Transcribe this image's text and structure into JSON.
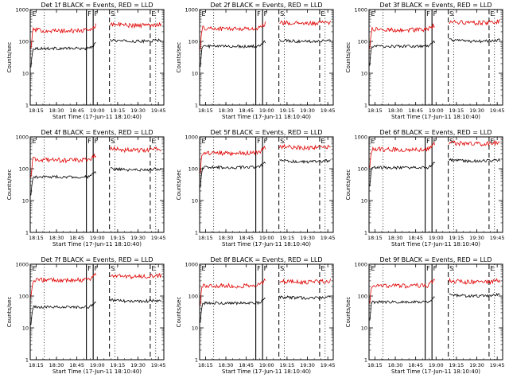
{
  "figure": {
    "layout": "3x3 grid of detector count-rate panels",
    "background_color": "#ffffff",
    "series_colors": {
      "events": "#000000",
      "lld": "#e00000"
    }
  },
  "chart_data": [
    {
      "type": "line",
      "title": "Det 1f BLACK = Events, RED = LLD",
      "xlabel": "Start Time (17-Jun-11 18:10:40)",
      "ylabel": "Counts/sec",
      "yscale": "log",
      "ylim": [
        1,
        1000
      ],
      "yticks": [
        "1",
        "10",
        "100",
        "1000"
      ],
      "xticks": [
        "18:15",
        "18:30",
        "18:45",
        "19:00",
        "19:15",
        "19:30",
        "19:45"
      ],
      "markers": [
        {
          "label": "E",
          "time": "18:10:40",
          "style": "letter"
        },
        {
          "label": "F",
          "time": "18:52",
          "style": "solid"
        },
        {
          "label": "F",
          "time": "18:57",
          "style": "solid"
        },
        {
          "label": "S",
          "time": "19:09",
          "style": "dashed"
        },
        {
          "label": "E",
          "time": "19:39",
          "style": "dashed"
        }
      ],
      "dotted_lines": [
        "18:21",
        "19:13",
        "19:43"
      ],
      "series": [
        {
          "color": "#000000",
          "level": 60,
          "level_mid": 60,
          "level_last": 110
        },
        {
          "color": "#e00000",
          "level": 230,
          "level_mid": 200,
          "level_last": 350
        }
      ]
    },
    {
      "type": "line",
      "title": "Det 2f BLACK = Events, RED = LLD",
      "xlabel": "Start Time (17-Jun-11 18:10:40)",
      "ylabel": "Counts/sec",
      "yscale": "log",
      "ylim": [
        1,
        1000
      ],
      "yticks": [
        "1",
        "10",
        "100",
        "1000"
      ],
      "xticks": [
        "18:15",
        "18:30",
        "18:45",
        "19:00",
        "19:15",
        "19:30",
        "19:45"
      ],
      "markers": [
        {
          "label": "E",
          "time": "18:10:40",
          "style": "letter"
        },
        {
          "label": "F",
          "time": "18:52",
          "style": "solid"
        },
        {
          "label": "F",
          "time": "18:57",
          "style": "solid"
        },
        {
          "label": "S",
          "time": "19:09",
          "style": "dashed"
        },
        {
          "label": "E",
          "time": "19:39",
          "style": "dashed"
        }
      ],
      "dotted_lines": [
        "18:21",
        "19:13",
        "19:43"
      ],
      "series": [
        {
          "color": "#000000",
          "level": 70,
          "level_mid": 70,
          "level_last": 110
        },
        {
          "color": "#e00000",
          "level": 260,
          "level_mid": 240,
          "level_last": 400
        }
      ]
    },
    {
      "type": "line",
      "title": "Det 3f BLACK = Events, RED = LLD",
      "xlabel": "Start Time (17-Jun-11 18:10:40)",
      "ylabel": "Counts/sec",
      "yscale": "log",
      "ylim": [
        1,
        1000
      ],
      "yticks": [
        "1",
        "10",
        "100",
        "1000"
      ],
      "xticks": [
        "18:15",
        "18:30",
        "18:45",
        "19:00",
        "19:15",
        "19:30",
        "19:45"
      ],
      "markers": [
        {
          "label": "E",
          "time": "18:10:40",
          "style": "letter"
        },
        {
          "label": "F",
          "time": "18:52",
          "style": "solid"
        },
        {
          "label": "F",
          "time": "18:57",
          "style": "solid"
        },
        {
          "label": "S",
          "time": "19:09",
          "style": "dashed"
        },
        {
          "label": "E",
          "time": "19:39",
          "style": "dashed"
        }
      ],
      "dotted_lines": [
        "18:21",
        "19:13",
        "19:43"
      ],
      "series": [
        {
          "color": "#000000",
          "level": 70,
          "level_mid": 70,
          "level_last": 110
        },
        {
          "color": "#e00000",
          "level": 240,
          "level_mid": 220,
          "level_last": 420
        }
      ]
    },
    {
      "type": "line",
      "title": "Det 4f BLACK = Events, RED = LLD",
      "xlabel": "Start Time (17-Jun-11 18:10:40)",
      "ylabel": "Counts/sec",
      "yscale": "log",
      "ylim": [
        1,
        1000
      ],
      "yticks": [
        "1",
        "10",
        "100",
        "1000"
      ],
      "xticks": [
        "18:15",
        "18:30",
        "18:45",
        "19:00",
        "19:15",
        "19:30",
        "19:45"
      ],
      "markers": [
        {
          "label": "E",
          "time": "18:10:40",
          "style": "letter"
        },
        {
          "label": "F",
          "time": "18:52",
          "style": "solid"
        },
        {
          "label": "F",
          "time": "18:57",
          "style": "solid"
        },
        {
          "label": "S",
          "time": "19:09",
          "style": "dashed"
        },
        {
          "label": "E",
          "time": "19:39",
          "style": "dashed"
        }
      ],
      "dotted_lines": [
        "18:21",
        "19:13",
        "19:43"
      ],
      "series": [
        {
          "color": "#000000",
          "level": 55,
          "level_mid": 55,
          "level_last": 100
        },
        {
          "color": "#e00000",
          "level": 200,
          "level_mid": 170,
          "level_last": 420
        }
      ]
    },
    {
      "type": "line",
      "title": "Det 5f BLACK = Events, RED = LLD",
      "xlabel": "Start Time (17-Jun-11 18:10:40)",
      "ylabel": "Counts/sec",
      "yscale": "log",
      "ylim": [
        1,
        1000
      ],
      "yticks": [
        "1",
        "10",
        "100",
        "1000"
      ],
      "xticks": [
        "18:15",
        "18:30",
        "18:45",
        "19:00",
        "19:15",
        "19:30",
        "19:45"
      ],
      "markers": [
        {
          "label": "E",
          "time": "18:10:40",
          "style": "letter"
        },
        {
          "label": "F",
          "time": "18:52",
          "style": "solid"
        },
        {
          "label": "F",
          "time": "18:57",
          "style": "solid"
        },
        {
          "label": "S",
          "time": "19:09",
          "style": "dashed"
        },
        {
          "label": "E",
          "time": "19:39",
          "style": "dashed"
        }
      ],
      "dotted_lines": [
        "18:21",
        "19:13",
        "19:43"
      ],
      "series": [
        {
          "color": "#000000",
          "level": 110,
          "level_mid": 110,
          "level_last": 180
        },
        {
          "color": "#e00000",
          "level": 320,
          "level_mid": 290,
          "level_last": 500
        }
      ]
    },
    {
      "type": "line",
      "title": "Det 6f BLACK = Events, RED = LLD",
      "xlabel": "Start Time (17-Jun-11 18:10:40)",
      "ylabel": "Counts/sec",
      "yscale": "log",
      "ylim": [
        1,
        1000
      ],
      "yticks": [
        "1",
        "10",
        "100",
        "1000"
      ],
      "xticks": [
        "18:15",
        "18:30",
        "18:45",
        "19:00",
        "19:15",
        "19:30",
        "19:45"
      ],
      "markers": [
        {
          "label": "E",
          "time": "18:10:40",
          "style": "letter"
        },
        {
          "label": "F",
          "time": "18:52",
          "style": "solid"
        },
        {
          "label": "F",
          "time": "18:57",
          "style": "solid"
        },
        {
          "label": "S",
          "time": "19:09",
          "style": "dashed"
        },
        {
          "label": "E",
          "time": "19:39",
          "style": "dashed"
        }
      ],
      "dotted_lines": [
        "18:21",
        "19:13",
        "19:43"
      ],
      "series": [
        {
          "color": "#000000",
          "level": 110,
          "level_mid": 105,
          "level_last": 190
        },
        {
          "color": "#e00000",
          "level": 420,
          "level_mid": 380,
          "level_last": 650
        }
      ]
    },
    {
      "type": "line",
      "title": "Det 7f BLACK = Events, RED = LLD",
      "xlabel": "Start Time (17-Jun-11 18:10:40)",
      "ylabel": "Counts/sec",
      "yscale": "log",
      "ylim": [
        1,
        1000
      ],
      "yticks": [
        "1",
        "10",
        "100",
        "1000"
      ],
      "xticks": [
        "18:15",
        "18:30",
        "18:45",
        "19:00",
        "19:15",
        "19:30",
        "19:45"
      ],
      "markers": [
        {
          "label": "E",
          "time": "18:10:40",
          "style": "letter"
        },
        {
          "label": "F",
          "time": "18:52",
          "style": "solid"
        },
        {
          "label": "F",
          "time": "18:57",
          "style": "solid"
        },
        {
          "label": "S",
          "time": "19:09",
          "style": "dashed"
        },
        {
          "label": "E",
          "time": "19:39",
          "style": "dashed"
        }
      ],
      "dotted_lines": [
        "18:21",
        "19:13",
        "19:43"
      ],
      "series": [
        {
          "color": "#000000",
          "level": 45,
          "level_mid": 45,
          "level_last": 75
        },
        {
          "color": "#e00000",
          "level": 330,
          "level_mid": 300,
          "level_last": 450
        }
      ]
    },
    {
      "type": "line",
      "title": "Det 8f BLACK = Events, RED = LLD",
      "xlabel": "Start Time (17-Jun-11 18:10:40)",
      "ylabel": "Counts/sec",
      "yscale": "log",
      "ylim": [
        1,
        1000
      ],
      "yticks": [
        "1",
        "10",
        "100",
        "1000"
      ],
      "xticks": [
        "18:15",
        "18:30",
        "18:45",
        "19:00",
        "19:15",
        "19:30",
        "19:45"
      ],
      "markers": [
        {
          "label": "E",
          "time": "18:10:40",
          "style": "letter"
        },
        {
          "label": "F",
          "time": "18:52",
          "style": "solid"
        },
        {
          "label": "F",
          "time": "18:57",
          "style": "solid"
        },
        {
          "label": "S",
          "time": "19:09",
          "style": "dashed"
        },
        {
          "label": "E",
          "time": "19:39",
          "style": "dashed"
        }
      ],
      "dotted_lines": [
        "18:21",
        "19:13",
        "19:43"
      ],
      "series": [
        {
          "color": "#000000",
          "level": 60,
          "level_mid": 60,
          "level_last": 95
        },
        {
          "color": "#e00000",
          "level": 220,
          "level_mid": 200,
          "level_last": 300
        }
      ]
    },
    {
      "type": "line",
      "title": "Det 9f BLACK = Events, RED = LLD",
      "xlabel": "Start Time (17-Jun-11 18:10:40)",
      "ylabel": "Counts/sec",
      "yscale": "log",
      "ylim": [
        1,
        1000
      ],
      "yticks": [
        "1",
        "10",
        "100",
        "1000"
      ],
      "xticks": [
        "18:15",
        "18:30",
        "18:45",
        "19:00",
        "19:15",
        "19:30",
        "19:45"
      ],
      "markers": [
        {
          "label": "E",
          "time": "18:10:40",
          "style": "letter"
        },
        {
          "label": "F",
          "time": "18:52",
          "style": "solid"
        },
        {
          "label": "F",
          "time": "18:57",
          "style": "solid"
        },
        {
          "label": "S",
          "time": "19:09",
          "style": "dashed"
        },
        {
          "label": "E",
          "time": "19:39",
          "style": "dashed"
        }
      ],
      "dotted_lines": [
        "18:21",
        "19:13",
        "19:43"
      ],
      "series": [
        {
          "color": "#000000",
          "level": 65,
          "level_mid": 65,
          "level_last": 110
        },
        {
          "color": "#e00000",
          "level": 220,
          "level_mid": 200,
          "level_last": 300
        }
      ]
    }
  ]
}
